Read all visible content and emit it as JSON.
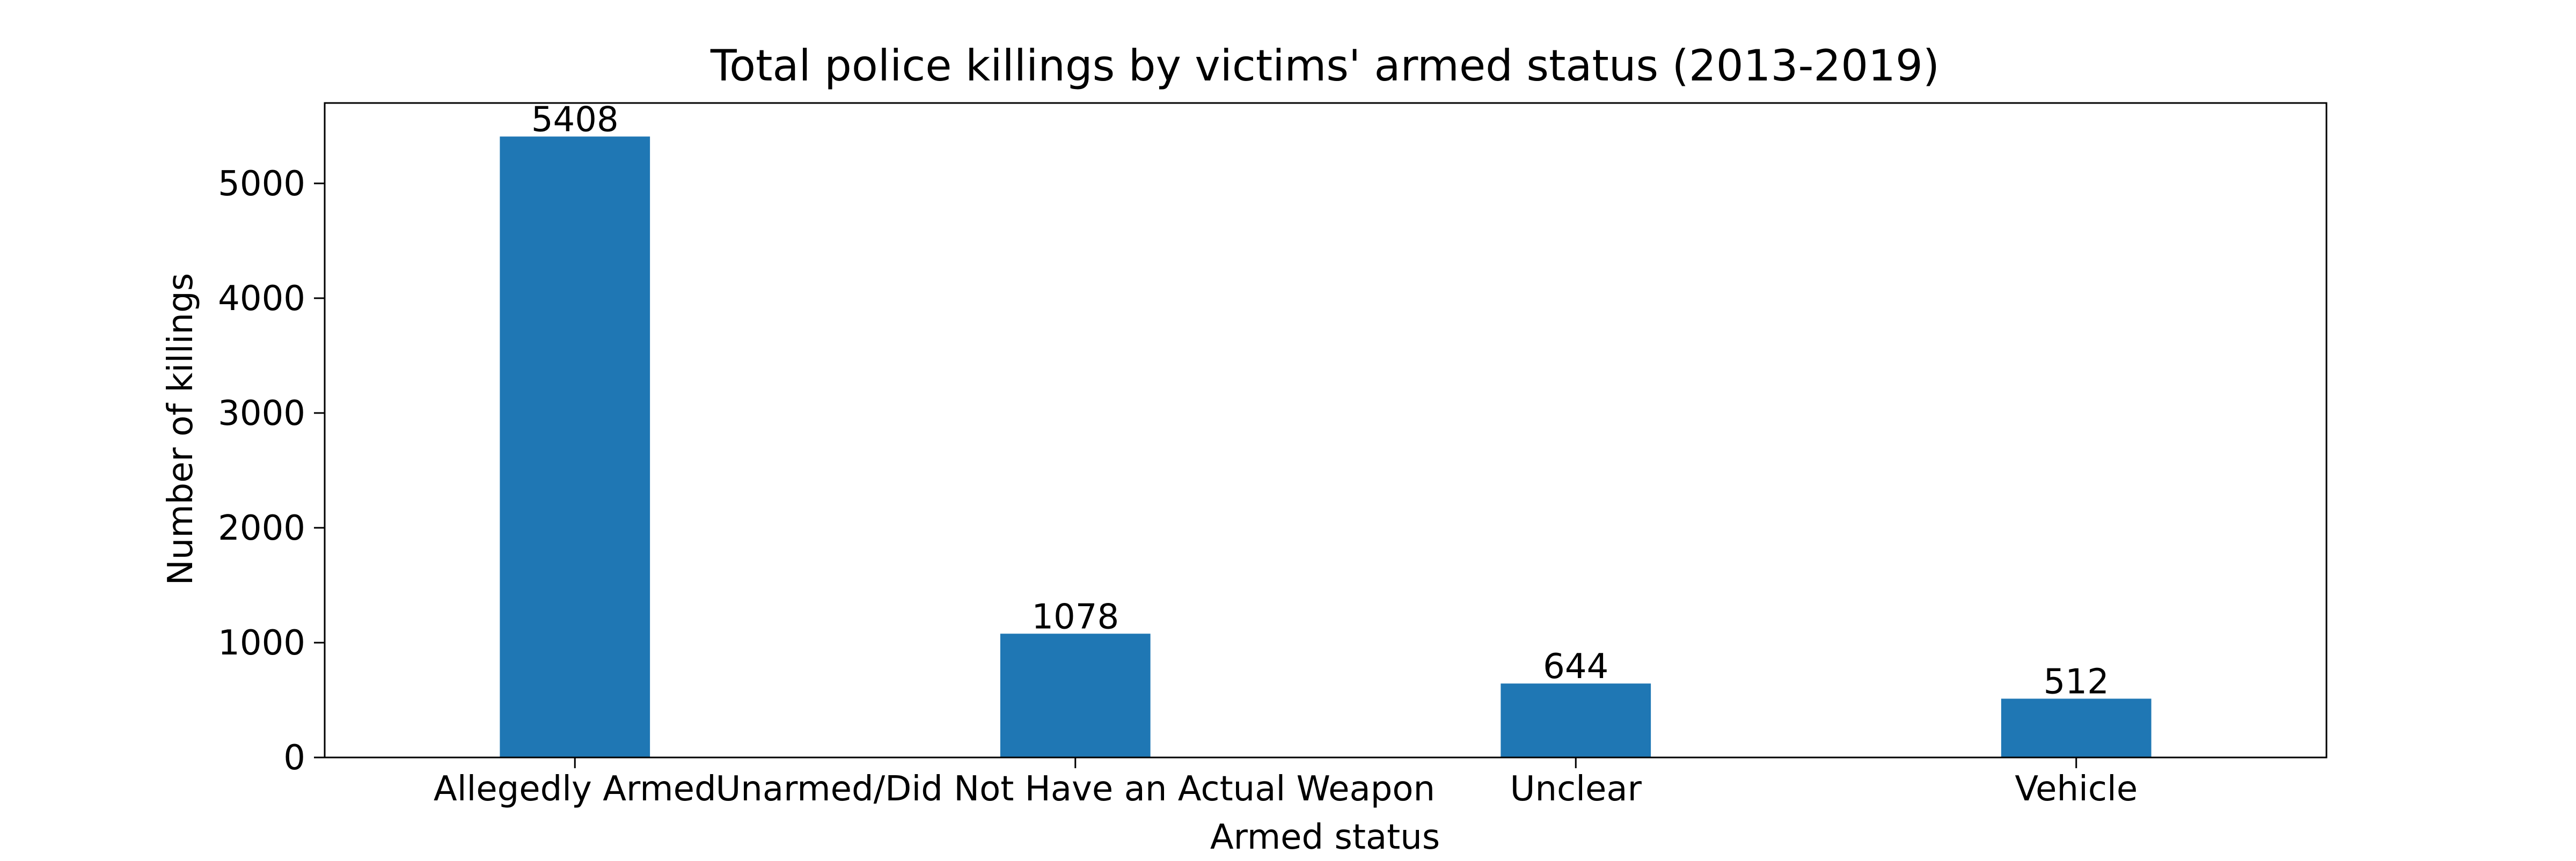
{
  "chart_data": {
    "type": "bar",
    "title": "Total police killings by victims' armed status (2013-2019)",
    "xlabel": "Armed status",
    "ylabel": "Number of killings",
    "categories": [
      "Allegedly Armed",
      "Unarmed/Did Not Have an Actual Weapon",
      "Unclear",
      "Vehicle"
    ],
    "values": [
      5408,
      1078,
      644,
      512
    ],
    "data_labels": [
      "5408",
      "1078",
      "644",
      "512"
    ],
    "yticks": [
      0,
      1000,
      2000,
      3000,
      4000,
      5000
    ],
    "ylim": [
      0,
      5700
    ],
    "bar_color": "#1f77b4",
    "grid": false,
    "legend": "none"
  }
}
